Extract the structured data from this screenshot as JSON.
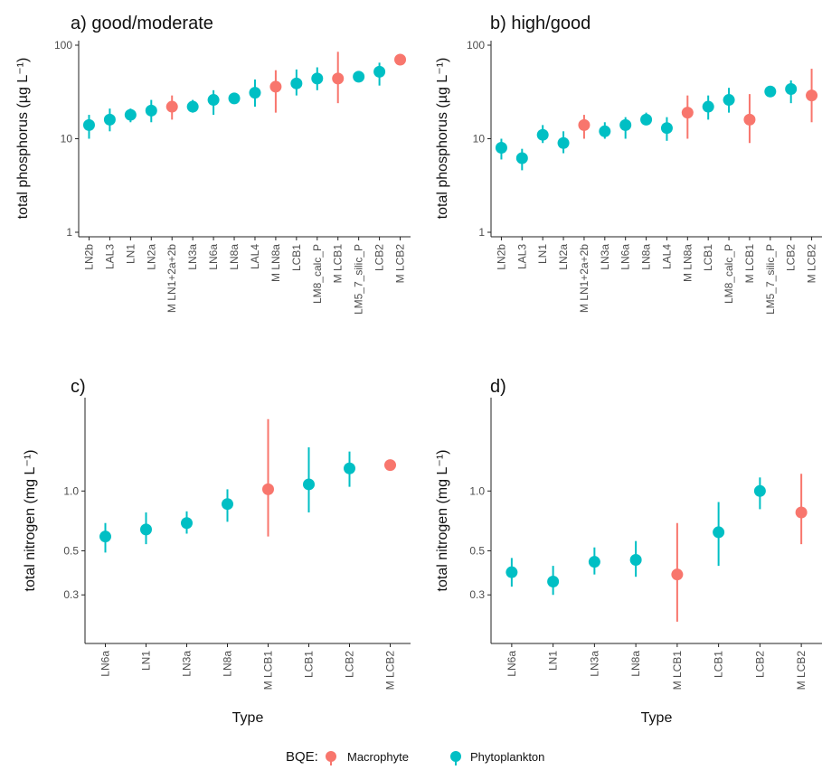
{
  "chart_data": [
    {
      "type": "scatter",
      "panel": "a",
      "title": "a)   good/moderate",
      "ylabel": "total phosphorus (µg L⁻¹)",
      "xlabel": "",
      "yscale": "log10",
      "ylim": [
        1,
        100
      ],
      "yticks": [
        1,
        10,
        100
      ],
      "ytick_labels": [
        "1",
        "10",
        "100"
      ],
      "categories": [
        "LN2b",
        "LAL3",
        "LN1",
        "LN2a",
        "M LN1+2a+2b",
        "LN3a",
        "LN6a",
        "LN8a",
        "LAL4",
        "M LN8a",
        "LCB1",
        "LM8_calc_P",
        "M LCB1",
        "LM5_7_silic_P",
        "LCB2",
        "M LCB2"
      ],
      "points": [
        {
          "x": "LN2b",
          "y": 14,
          "low": 10,
          "high": 18,
          "bqe": "Phytoplankton"
        },
        {
          "x": "LAL3",
          "y": 16,
          "low": 12,
          "high": 21,
          "bqe": "Phytoplankton"
        },
        {
          "x": "LN1",
          "y": 18,
          "low": 15,
          "high": 21,
          "bqe": "Phytoplankton"
        },
        {
          "x": "LN2a",
          "y": 20,
          "low": 15,
          "high": 26,
          "bqe": "Phytoplankton"
        },
        {
          "x": "M LN1+2a+2b",
          "y": 22,
          "low": 16,
          "high": 29,
          "bqe": "Macrophyte"
        },
        {
          "x": "LN3a",
          "y": 22,
          "low": 19,
          "high": 26,
          "bqe": "Phytoplankton"
        },
        {
          "x": "LN6a",
          "y": 26,
          "low": 18,
          "high": 33,
          "bqe": "Phytoplankton"
        },
        {
          "x": "LN8a",
          "y": 27,
          "low": 24,
          "high": 31,
          "bqe": "Phytoplankton"
        },
        {
          "x": "LAL4",
          "y": 31,
          "low": 22,
          "high": 43,
          "bqe": "Phytoplankton"
        },
        {
          "x": "M LN8a",
          "y": 36,
          "low": 19,
          "high": 54,
          "bqe": "Macrophyte"
        },
        {
          "x": "LCB1",
          "y": 39,
          "low": 29,
          "high": 55,
          "bqe": "Phytoplankton"
        },
        {
          "x": "LM8_calc_P",
          "y": 44,
          "low": 33,
          "high": 58,
          "bqe": "Phytoplankton"
        },
        {
          "x": "M LCB1",
          "y": 44,
          "low": 24,
          "high": 85,
          "bqe": "Macrophyte"
        },
        {
          "x": "LM5_7_silic_P",
          "y": 46,
          "low": 41,
          "high": 51,
          "bqe": "Phytoplankton"
        },
        {
          "x": "LCB2",
          "y": 52,
          "low": 37,
          "high": 65,
          "bqe": "Phytoplankton"
        },
        {
          "x": "M LCB2",
          "y": 70,
          "low": 65,
          "high": 75,
          "bqe": "Macrophyte"
        }
      ]
    },
    {
      "type": "scatter",
      "panel": "b",
      "title": "b)   high/good",
      "ylabel": "total phosphorus (µg L⁻¹)",
      "xlabel": "",
      "yscale": "log10",
      "ylim": [
        1,
        100
      ],
      "yticks": [
        1,
        10,
        100
      ],
      "ytick_labels": [
        "1",
        "10",
        "100"
      ],
      "categories": [
        "LN2b",
        "LAL3",
        "LN1",
        "LN2a",
        "M LN1+2a+2b",
        "LN3a",
        "LN6a",
        "LN8a",
        "LAL4",
        "M LN8a",
        "LCB1",
        "LM8_calc_P",
        "M LCB1",
        "LM5_7_silic_P",
        "LCB2",
        "M LCB2"
      ],
      "points": [
        {
          "x": "LN2b",
          "y": 8,
          "low": 6,
          "high": 10,
          "bqe": "Phytoplankton"
        },
        {
          "x": "LAL3",
          "y": 6.2,
          "low": 4.6,
          "high": 7.8,
          "bqe": "Phytoplankton"
        },
        {
          "x": "LN1",
          "y": 11,
          "low": 9,
          "high": 14,
          "bqe": "Phytoplankton"
        },
        {
          "x": "LN2a",
          "y": 9,
          "low": 7,
          "high": 12,
          "bqe": "Phytoplankton"
        },
        {
          "x": "M LN1+2a+2b",
          "y": 14,
          "low": 10,
          "high": 18,
          "bqe": "Macrophyte"
        },
        {
          "x": "LN3a",
          "y": 12,
          "low": 10,
          "high": 15,
          "bqe": "Phytoplankton"
        },
        {
          "x": "LN6a",
          "y": 14,
          "low": 10,
          "high": 17,
          "bqe": "Phytoplankton"
        },
        {
          "x": "LN8a",
          "y": 16,
          "low": 14,
          "high": 19,
          "bqe": "Phytoplankton"
        },
        {
          "x": "LAL4",
          "y": 13,
          "low": 9.5,
          "high": 17,
          "bqe": "Phytoplankton"
        },
        {
          "x": "M LN8a",
          "y": 19,
          "low": 10,
          "high": 29,
          "bqe": "Macrophyte"
        },
        {
          "x": "LCB1",
          "y": 22,
          "low": 16,
          "high": 29,
          "bqe": "Phytoplankton"
        },
        {
          "x": "LM8_calc_P",
          "y": 26,
          "low": 19,
          "high": 35,
          "bqe": "Phytoplankton"
        },
        {
          "x": "M LCB1",
          "y": 16,
          "low": 9,
          "high": 30,
          "bqe": "Macrophyte"
        },
        {
          "x": "LM5_7_silic_P",
          "y": 32,
          "low": 29,
          "high": 35,
          "bqe": "Phytoplankton"
        },
        {
          "x": "LCB2",
          "y": 34,
          "low": 24,
          "high": 42,
          "bqe": "Phytoplankton"
        },
        {
          "x": "M LCB2",
          "y": 29,
          "low": 15,
          "high": 56,
          "bqe": "Macrophyte"
        }
      ]
    },
    {
      "type": "scatter",
      "panel": "c",
      "title": "c)",
      "ylabel": "total nitrogen (mg L⁻¹)",
      "xlabel": "Type",
      "yscale": "log10",
      "ylim": [
        0.18,
        2.8
      ],
      "yticks": [
        0.3,
        0.5,
        1.0
      ],
      "ytick_labels": [
        "0.3",
        "0.5",
        "1.0"
      ],
      "categories": [
        "LN6a",
        "LN1",
        "LN3a",
        "LN8a",
        "M LCB1",
        "LCB1",
        "LCB2",
        "M LCB2"
      ],
      "points": [
        {
          "x": "LN6a",
          "y": 0.59,
          "low": 0.49,
          "high": 0.69,
          "bqe": "Phytoplankton"
        },
        {
          "x": "LN1",
          "y": 0.64,
          "low": 0.54,
          "high": 0.78,
          "bqe": "Phytoplankton"
        },
        {
          "x": "LN3a",
          "y": 0.69,
          "low": 0.61,
          "high": 0.79,
          "bqe": "Phytoplankton"
        },
        {
          "x": "LN8a",
          "y": 0.86,
          "low": 0.7,
          "high": 1.02,
          "bqe": "Phytoplankton"
        },
        {
          "x": "M LCB1",
          "y": 1.02,
          "low": 0.59,
          "high": 2.3,
          "bqe": "Macrophyte"
        },
        {
          "x": "LCB1",
          "y": 1.08,
          "low": 0.78,
          "high": 1.66,
          "bqe": "Phytoplankton"
        },
        {
          "x": "LCB2",
          "y": 1.3,
          "low": 1.05,
          "high": 1.58,
          "bqe": "Phytoplankton"
        },
        {
          "x": "M LCB2",
          "y": 1.35,
          "low": 1.3,
          "high": 1.4,
          "bqe": "Macrophyte"
        }
      ]
    },
    {
      "type": "scatter",
      "panel": "d",
      "title": "d)",
      "ylabel": "total nitrogen (mg L⁻¹)",
      "xlabel": "Type",
      "yscale": "log10",
      "ylim": [
        0.18,
        2.8
      ],
      "yticks": [
        0.3,
        0.5,
        1.0
      ],
      "ytick_labels": [
        "0.3",
        "0.5",
        "1.0"
      ],
      "categories": [
        "LN6a",
        "LN1",
        "LN3a",
        "LN8a",
        "M LCB1",
        "LCB1",
        "LCB2",
        "M LCB2"
      ],
      "points": [
        {
          "x": "LN6a",
          "y": 0.39,
          "low": 0.33,
          "high": 0.46,
          "bqe": "Phytoplankton"
        },
        {
          "x": "LN1",
          "y": 0.35,
          "low": 0.3,
          "high": 0.42,
          "bqe": "Phytoplankton"
        },
        {
          "x": "LN3a",
          "y": 0.44,
          "low": 0.38,
          "high": 0.52,
          "bqe": "Phytoplankton"
        },
        {
          "x": "LN8a",
          "y": 0.45,
          "low": 0.37,
          "high": 0.56,
          "bqe": "Phytoplankton"
        },
        {
          "x": "M LCB1",
          "y": 0.38,
          "low": 0.22,
          "high": 0.69,
          "bqe": "Macrophyte"
        },
        {
          "x": "LCB1",
          "y": 0.62,
          "low": 0.42,
          "high": 0.88,
          "bqe": "Phytoplankton"
        },
        {
          "x": "LCB2",
          "y": 1.0,
          "low": 0.81,
          "high": 1.17,
          "bqe": "Phytoplankton"
        },
        {
          "x": "M LCB2",
          "y": 0.78,
          "low": 0.54,
          "high": 1.22,
          "bqe": "Macrophyte"
        }
      ]
    }
  ],
  "legend": {
    "title": "BQE:",
    "items": [
      {
        "label": "Macrophyte",
        "color": "#F8766D"
      },
      {
        "label": "Phytoplankton",
        "color": "#00BFC4"
      }
    ]
  }
}
